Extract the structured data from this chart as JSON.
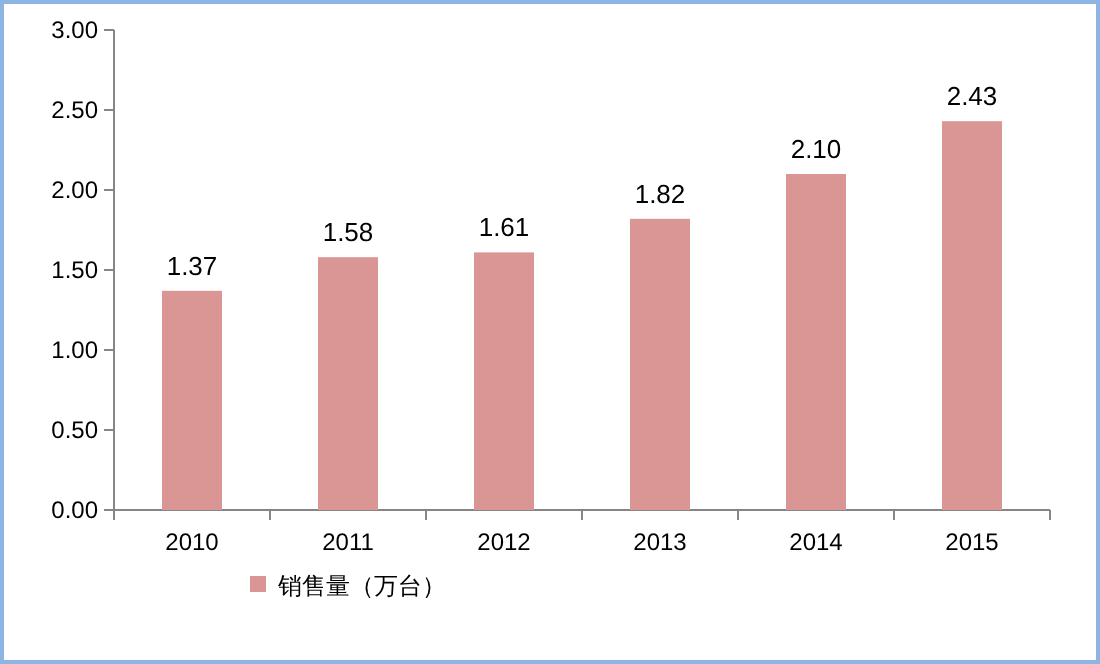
{
  "chart_data": {
    "type": "bar",
    "categories": [
      "2010",
      "2011",
      "2012",
      "2013",
      "2014",
      "2015"
    ],
    "series": [
      {
        "name": "销售量（万台）",
        "color": "#d99694",
        "values": [
          1.37,
          1.58,
          1.61,
          1.82,
          2.1,
          2.43
        ],
        "value_labels": [
          "1.37",
          "1.58",
          "1.61",
          "1.82",
          "2.10",
          "2.43"
        ]
      }
    ],
    "ylim": [
      0,
      3
    ],
    "yticks": [
      {
        "value": 0,
        "label": "0.00"
      },
      {
        "value": 0.5,
        "label": "0.50"
      },
      {
        "value": 1,
        "label": "1.00"
      },
      {
        "value": 1.5,
        "label": "1.50"
      },
      {
        "value": 2,
        "label": "2.00"
      },
      {
        "value": 2.5,
        "label": "2.50"
      },
      {
        "value": 3,
        "label": "3.00"
      }
    ],
    "legend": "bottom left",
    "grid": false
  }
}
